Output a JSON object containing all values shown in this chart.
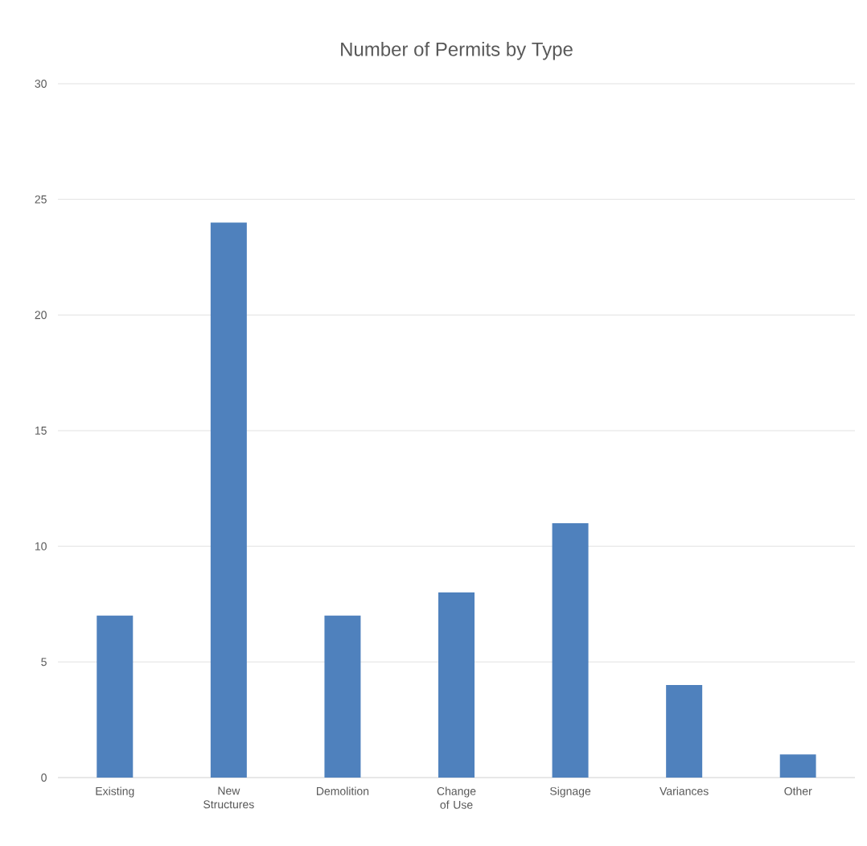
{
  "chart_data": {
    "type": "bar",
    "title": "Number of Permits by Type",
    "categories": [
      "Existing",
      "New Structures",
      "Demolition",
      "Change of Use",
      "Signage",
      "Variances",
      "Other"
    ],
    "values": [
      7,
      24,
      7,
      8,
      11,
      4,
      1
    ],
    "color": "#4f81bd",
    "ylim": [
      0,
      30
    ],
    "yticks": [
      0,
      5,
      10,
      15,
      20,
      25,
      30
    ],
    "grid": "y"
  }
}
